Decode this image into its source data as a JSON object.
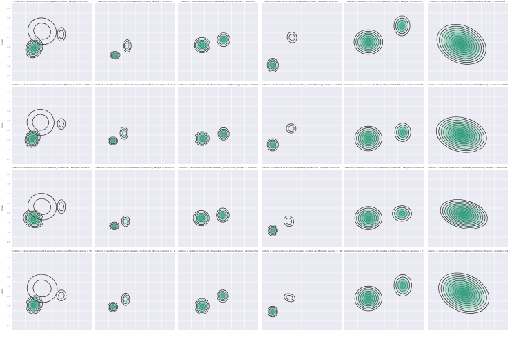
{
  "chart_data": {
    "type": "kde-contour-grid",
    "rows": 4,
    "cols": 6,
    "fill_color": "#2a9a78",
    "line_color": "#222222",
    "background": "#eaeaf2",
    "grid": true,
    "ylabel": "scale",
    "yticks": [
      "0.5",
      "1.0",
      "1.5",
      "2.0",
      "2.5",
      "3.0",
      "3.5",
      "4.0"
    ],
    "row_methods": [
      "method = obsdt.rel.2conn.std.kfr.epsabla_contant",
      "method = obsdt.rel.2conn.std.kfr.epsabla_contant.filtering",
      "method = obsdt.rel.2conn.std.kfr.epsabla_contant.nsc",
      "method = obsdt.rel.2conn.std.kfr.epsabla_contant.nsc.filtering"
    ],
    "col_samples": [
      "sample = SDSS-G1",
      "sample = 1110-TDY",
      "sample = SDSS-ELS",
      "sample = 1M2-SDY",
      "sample = CTOR-TSO",
      "sample = LULU-MSG"
    ],
    "panels": [
      [
        {
          "blobs": [
            {
              "x": 0.28,
              "y": 0.42,
              "rx": 0.1,
              "ry": 0.13,
              "tilt": -30,
              "levels": 6
            },
            {
              "x": 0.38,
              "y": 0.64,
              "rx": 0.18,
              "ry": 0.17,
              "tilt": -25,
              "levels": 2
            },
            {
              "x": 0.62,
              "y": 0.6,
              "rx": 0.05,
              "ry": 0.09,
              "tilt": 0,
              "levels": 2
            }
          ]
        },
        {
          "blobs": [
            {
              "x": 0.25,
              "y": 0.33,
              "rx": 0.06,
              "ry": 0.05,
              "tilt": 0,
              "levels": 4
            },
            {
              "x": 0.4,
              "y": 0.45,
              "rx": 0.05,
              "ry": 0.08,
              "tilt": 0,
              "levels": 3
            }
          ]
        },
        {
          "blobs": [
            {
              "x": 0.3,
              "y": 0.46,
              "rx": 0.1,
              "ry": 0.1,
              "tilt": 0,
              "levels": 5
            },
            {
              "x": 0.57,
              "y": 0.53,
              "rx": 0.08,
              "ry": 0.09,
              "tilt": 0,
              "levels": 4
            }
          ]
        },
        {
          "blobs": [
            {
              "x": 0.14,
              "y": 0.2,
              "rx": 0.07,
              "ry": 0.09,
              "tilt": 0,
              "levels": 4
            },
            {
              "x": 0.38,
              "y": 0.56,
              "rx": 0.06,
              "ry": 0.07,
              "tilt": 20,
              "levels": 2
            }
          ]
        },
        {
          "blobs": [
            {
              "x": 0.3,
              "y": 0.5,
              "rx": 0.18,
              "ry": 0.16,
              "tilt": 0,
              "levels": 7
            },
            {
              "x": 0.72,
              "y": 0.71,
              "rx": 0.1,
              "ry": 0.13,
              "tilt": 0,
              "levels": 4
            }
          ]
        },
        {
          "blobs": [
            {
              "x": 0.42,
              "y": 0.47,
              "rx": 0.32,
              "ry": 0.24,
              "tilt": -25,
              "levels": 10
            }
          ]
        }
      ],
      [
        {
          "blobs": [
            {
              "x": 0.26,
              "y": 0.33,
              "rx": 0.09,
              "ry": 0.12,
              "tilt": -25,
              "levels": 6
            },
            {
              "x": 0.36,
              "y": 0.54,
              "rx": 0.17,
              "ry": 0.17,
              "tilt": -20,
              "levels": 2
            },
            {
              "x": 0.62,
              "y": 0.52,
              "rx": 0.05,
              "ry": 0.07,
              "tilt": 0,
              "levels": 2
            }
          ]
        },
        {
          "blobs": [
            {
              "x": 0.22,
              "y": 0.3,
              "rx": 0.06,
              "ry": 0.05,
              "tilt": 0,
              "levels": 4
            },
            {
              "x": 0.36,
              "y": 0.4,
              "rx": 0.05,
              "ry": 0.08,
              "tilt": 0,
              "levels": 3
            }
          ]
        },
        {
          "blobs": [
            {
              "x": 0.3,
              "y": 0.33,
              "rx": 0.09,
              "ry": 0.09,
              "tilt": 0,
              "levels": 5
            },
            {
              "x": 0.57,
              "y": 0.39,
              "rx": 0.07,
              "ry": 0.08,
              "tilt": 0,
              "levels": 4
            }
          ]
        },
        {
          "blobs": [
            {
              "x": 0.14,
              "y": 0.25,
              "rx": 0.07,
              "ry": 0.08,
              "tilt": 0,
              "levels": 4
            },
            {
              "x": 0.37,
              "y": 0.46,
              "rx": 0.06,
              "ry": 0.06,
              "tilt": 0,
              "levels": 2
            }
          ]
        },
        {
          "blobs": [
            {
              "x": 0.3,
              "y": 0.33,
              "rx": 0.17,
              "ry": 0.16,
              "tilt": 0,
              "levels": 7
            },
            {
              "x": 0.73,
              "y": 0.41,
              "rx": 0.1,
              "ry": 0.12,
              "tilt": 0,
              "levels": 4
            }
          ]
        },
        {
          "blobs": [
            {
              "x": 0.42,
              "y": 0.38,
              "rx": 0.32,
              "ry": 0.22,
              "tilt": -15,
              "levels": 10
            }
          ]
        }
      ],
      [
        {
          "blobs": [
            {
              "x": 0.27,
              "y": 0.36,
              "rx": 0.13,
              "ry": 0.11,
              "tilt": -30,
              "levels": 6
            },
            {
              "x": 0.38,
              "y": 0.52,
              "rx": 0.18,
              "ry": 0.17,
              "tilt": -20,
              "levels": 2
            },
            {
              "x": 0.62,
              "y": 0.52,
              "rx": 0.05,
              "ry": 0.09,
              "tilt": 0,
              "levels": 2
            }
          ]
        },
        {
          "blobs": [
            {
              "x": 0.24,
              "y": 0.27,
              "rx": 0.06,
              "ry": 0.05,
              "tilt": 0,
              "levels": 4
            },
            {
              "x": 0.38,
              "y": 0.33,
              "rx": 0.05,
              "ry": 0.07,
              "tilt": 0,
              "levels": 3
            }
          ]
        },
        {
          "blobs": [
            {
              "x": 0.29,
              "y": 0.37,
              "rx": 0.1,
              "ry": 0.1,
              "tilt": 0,
              "levels": 5
            },
            {
              "x": 0.56,
              "y": 0.41,
              "rx": 0.08,
              "ry": 0.09,
              "tilt": 0,
              "levels": 4
            }
          ]
        },
        {
          "blobs": [
            {
              "x": 0.14,
              "y": 0.21,
              "rx": 0.06,
              "ry": 0.07,
              "tilt": 0,
              "levels": 4
            },
            {
              "x": 0.34,
              "y": 0.33,
              "rx": 0.06,
              "ry": 0.07,
              "tilt": 25,
              "levels": 2
            }
          ]
        },
        {
          "blobs": [
            {
              "x": 0.3,
              "y": 0.37,
              "rx": 0.17,
              "ry": 0.15,
              "tilt": 0,
              "levels": 7
            },
            {
              "x": 0.72,
              "y": 0.43,
              "rx": 0.12,
              "ry": 0.1,
              "tilt": 0,
              "levels": 4
            }
          ]
        },
        {
          "blobs": [
            {
              "x": 0.45,
              "y": 0.42,
              "rx": 0.3,
              "ry": 0.18,
              "tilt": -15,
              "levels": 10
            }
          ]
        }
      ],
      [
        {
          "blobs": [
            {
              "x": 0.28,
              "y": 0.33,
              "rx": 0.1,
              "ry": 0.12,
              "tilt": -25,
              "levels": 6
            },
            {
              "x": 0.38,
              "y": 0.54,
              "rx": 0.19,
              "ry": 0.18,
              "tilt": -20,
              "levels": 2
            },
            {
              "x": 0.62,
              "y": 0.45,
              "rx": 0.06,
              "ry": 0.07,
              "tilt": 0,
              "levels": 2
            }
          ]
        },
        {
          "blobs": [
            {
              "x": 0.22,
              "y": 0.3,
              "rx": 0.06,
              "ry": 0.06,
              "tilt": 0,
              "levels": 4
            },
            {
              "x": 0.38,
              "y": 0.4,
              "rx": 0.05,
              "ry": 0.08,
              "tilt": 0,
              "levels": 3
            }
          ]
        },
        {
          "blobs": [
            {
              "x": 0.3,
              "y": 0.31,
              "rx": 0.09,
              "ry": 0.1,
              "tilt": 0,
              "levels": 5
            },
            {
              "x": 0.56,
              "y": 0.44,
              "rx": 0.07,
              "ry": 0.08,
              "tilt": 0,
              "levels": 4
            }
          ]
        },
        {
          "blobs": [
            {
              "x": 0.14,
              "y": 0.24,
              "rx": 0.06,
              "ry": 0.07,
              "tilt": 0,
              "levels": 4
            },
            {
              "x": 0.35,
              "y": 0.42,
              "rx": 0.07,
              "ry": 0.05,
              "tilt": -20,
              "levels": 2
            }
          ]
        },
        {
          "blobs": [
            {
              "x": 0.3,
              "y": 0.41,
              "rx": 0.17,
              "ry": 0.16,
              "tilt": 0,
              "levels": 7
            },
            {
              "x": 0.73,
              "y": 0.58,
              "rx": 0.11,
              "ry": 0.14,
              "tilt": 0,
              "levels": 4
            }
          ]
        },
        {
          "blobs": [
            {
              "x": 0.45,
              "y": 0.48,
              "rx": 0.33,
              "ry": 0.24,
              "tilt": -25,
              "levels": 10
            }
          ]
        }
      ]
    ]
  }
}
